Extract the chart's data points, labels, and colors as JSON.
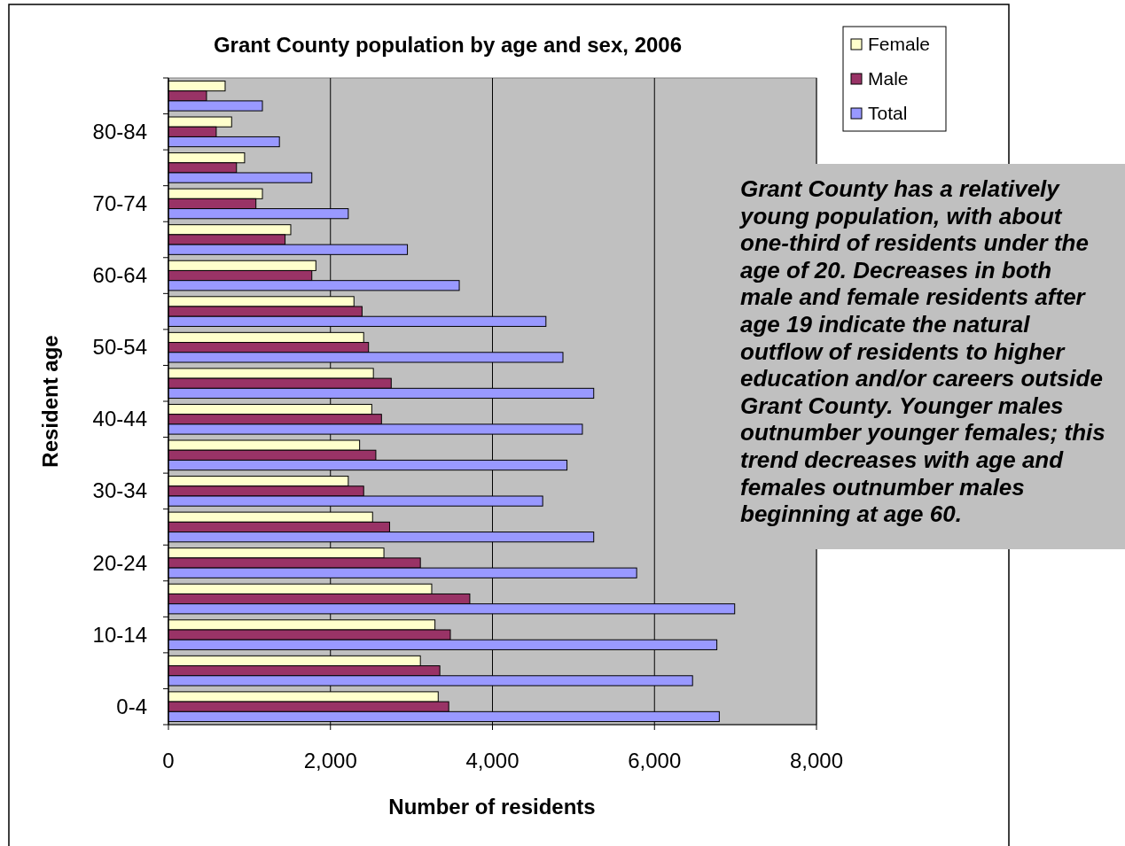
{
  "chart_data": {
    "type": "bar",
    "orientation": "horizontal",
    "title": "Grant County population by age and sex, 2006",
    "xlabel": "Number of residents",
    "ylabel": "Resident age",
    "categories": [
      null,
      "80-84",
      null,
      "70-74",
      null,
      "60-64",
      null,
      "50-54",
      null,
      "40-44",
      null,
      "30-34",
      null,
      "20-24",
      null,
      "10-14",
      null,
      "0-4"
    ],
    "series": [
      {
        "name": "Female",
        "color": "#ffffcc",
        "values": [
          700,
          780,
          940,
          1160,
          1510,
          1820,
          2290,
          2410,
          2530,
          2510,
          2360,
          2220,
          2520,
          2660,
          3250,
          3290,
          3110,
          3330
        ]
      },
      {
        "name": "Male",
        "color": "#993366",
        "values": [
          470,
          590,
          840,
          1080,
          1440,
          1770,
          2390,
          2470,
          2750,
          2630,
          2560,
          2410,
          2730,
          3110,
          3720,
          3480,
          3350,
          3460
        ]
      },
      {
        "name": "Total",
        "color": "#9999ff",
        "values": [
          1160,
          1370,
          1770,
          2220,
          2950,
          3590,
          4660,
          4870,
          5250,
          5110,
          4920,
          4620,
          5250,
          5780,
          6990,
          6770,
          6470,
          6800
        ]
      }
    ],
    "xlim": [
      0,
      8000
    ],
    "xticks": [
      0,
      {
        "value": 2000,
        "label": "2,000"
      },
      {
        "value": 4000,
        "label": "4,000"
      },
      {
        "value": 6000,
        "label": "6,000"
      },
      {
        "value": 8000,
        "label": "8,000"
      }
    ],
    "grid": "x",
    "legend": "top right",
    "annotations": [
      "Grant County has a relatively young population, with about one-third of residents under the age of 20.  Decreases in both male and female residents after age 19 indicate the natural outflow of residents to higher education and/or careers outside Grant County.  Younger males outnumber younger females; this trend decreases with age and females outnumber males beginning at age 60."
    ]
  }
}
